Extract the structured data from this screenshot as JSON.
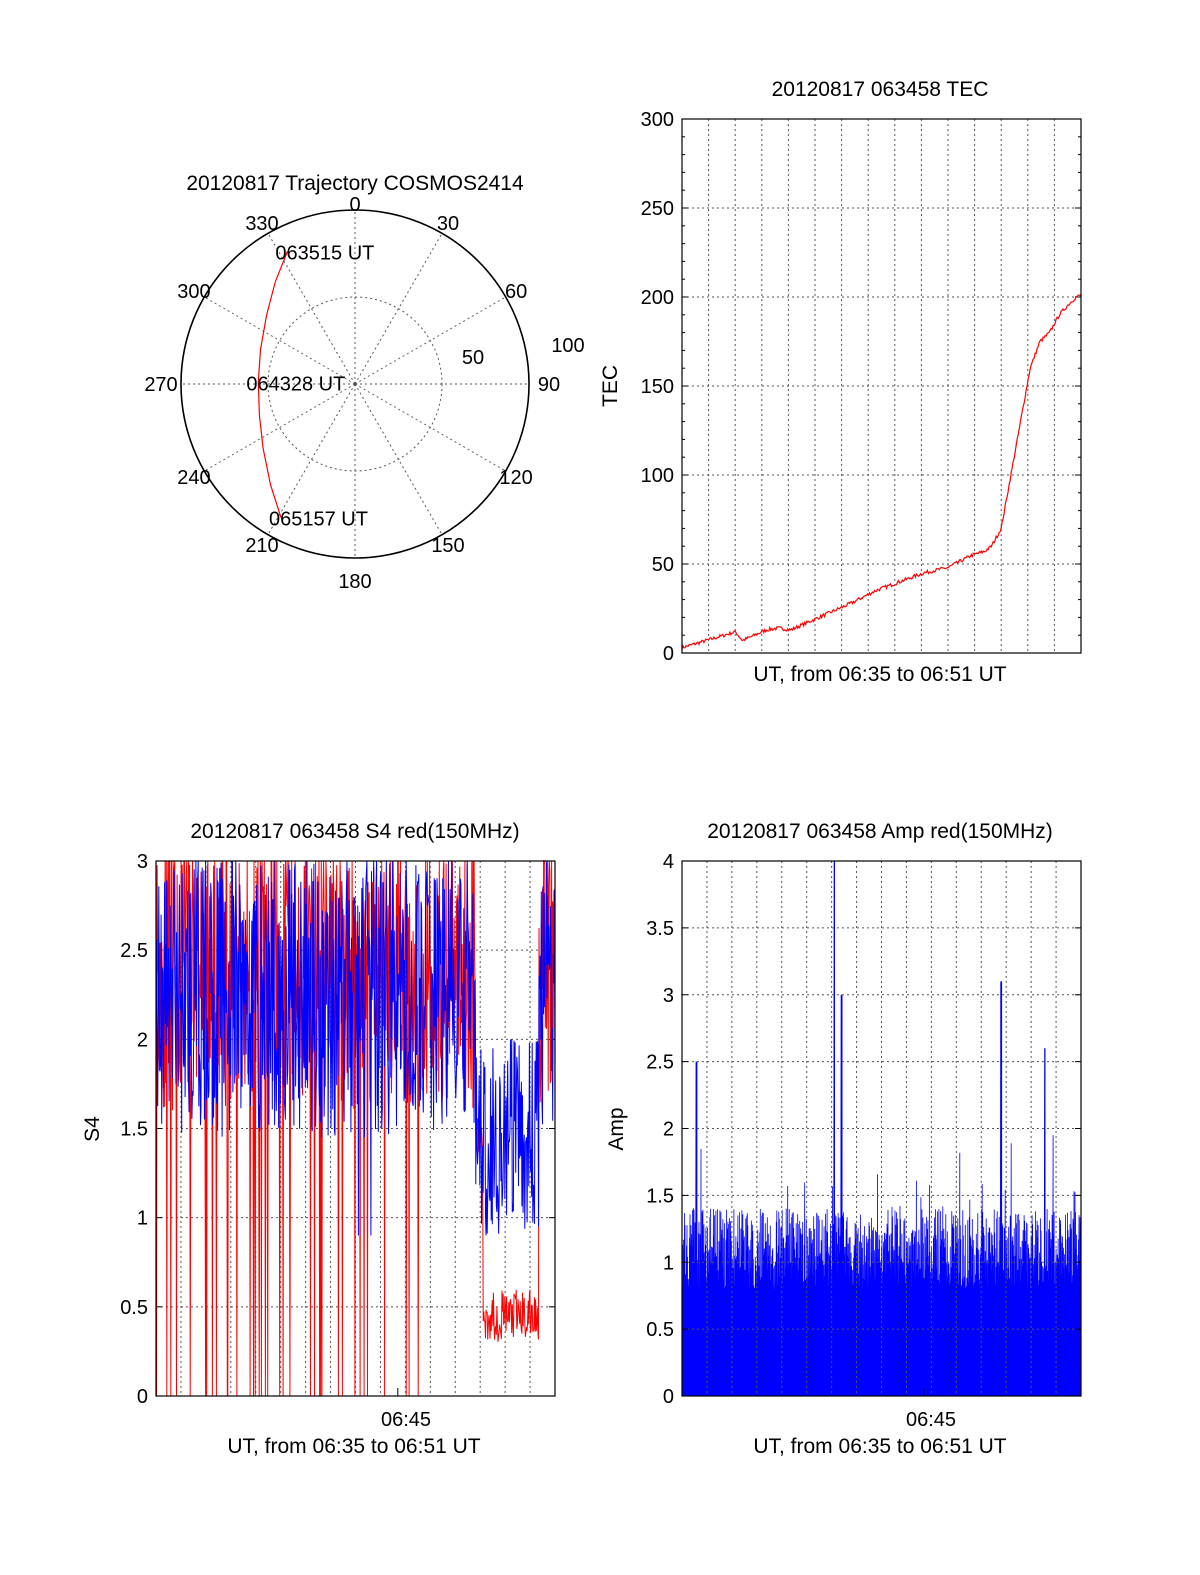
{
  "chart_data": [
    {
      "type": "polar",
      "title": "20120817 Trajectory COSMOS2414",
      "angle_labels": [
        "0",
        "30",
        "60",
        "90",
        "120",
        "150",
        "180",
        "210",
        "240",
        "270",
        "300",
        "330"
      ],
      "radial_labels": [
        "50",
        "100"
      ],
      "radial_range": [
        0,
        100
      ],
      "grid": true,
      "series": [
        {
          "color": "#ff0000",
          "points": [
            {
              "azimuth": 333,
              "elevation": 13
            },
            {
              "azimuth": 322,
              "elevation": 23
            },
            {
              "azimuth": 308,
              "elevation": 32
            },
            {
              "azimuth": 290,
              "elevation": 38
            },
            {
              "azimuth": 271,
              "elevation": 40
            },
            {
              "azimuth": 252,
              "elevation": 38
            },
            {
              "azimuth": 235,
              "elevation": 32
            },
            {
              "azimuth": 220,
              "elevation": 22
            },
            {
              "azimuth": 209,
              "elevation": 11
            }
          ]
        }
      ],
      "annotations": [
        {
          "text": "063515 UT",
          "azimuth": 333,
          "elevation": 13
        },
        {
          "text": "064328 UT",
          "azimuth": 271,
          "elevation": 40
        },
        {
          "text": "065157 UT",
          "azimuth": 209,
          "elevation": 11
        }
      ]
    },
    {
      "type": "line",
      "title": "20120817 063458 TEC",
      "xlabel": "UT, from 06:35 to 06:51 UT",
      "ylabel": "TEC",
      "ylim": [
        0,
        300
      ],
      "yticks": [
        0,
        50,
        100,
        150,
        200,
        250,
        300
      ],
      "xlim_minutes_after_0635": [
        0,
        16.5
      ],
      "grid": true,
      "series": [
        {
          "color": "#ff0000",
          "x": [
            0,
            0.5,
            1.0,
            1.5,
            2.0,
            2.2,
            2.5,
            3.0,
            3.5,
            4.0,
            4.5,
            5.0,
            6.0,
            7.0,
            8.0,
            9.0,
            10.0,
            11.0,
            12.0,
            12.5,
            12.8,
            13.2,
            13.6,
            14.0,
            14.4,
            14.8,
            15.2,
            15.6,
            16.0,
            16.3,
            16.5
          ],
          "values": [
            3,
            5,
            7,
            9,
            11,
            12,
            7,
            10,
            13,
            14,
            13,
            16,
            22,
            28,
            35,
            40,
            45,
            48,
            55,
            57,
            60,
            70,
            100,
            130,
            160,
            175,
            180,
            190,
            196,
            200,
            201
          ]
        }
      ]
    },
    {
      "type": "line",
      "title": "20120817 063458 S4 red(150MHz)",
      "xlabel": "UT, from 06:35 to 06:51 UT",
      "ylabel": "S4",
      "ylim": [
        0,
        3
      ],
      "yticks": [
        0,
        0.5,
        1,
        1.5,
        2,
        2.5,
        3
      ],
      "xtick_labels": [
        "06:45"
      ],
      "grid": true,
      "series": [
        {
          "color": "#ff0000",
          "description_values": {
            "baseline": [
              1.5,
              3
            ],
            "dropouts_to": 0,
            "dip_around_0648": [
              0.3,
              0.5
            ]
          }
        },
        {
          "color": "#0000ff",
          "description_values": {
            "range": [
              1.4,
              3
            ],
            "dip_around_0648": [
              0.8,
              2
            ]
          }
        }
      ]
    },
    {
      "type": "bar",
      "title": "20120817 063458 Amp red(150MHz)",
      "xlabel": "UT, from 06:35 to 06:51 UT",
      "ylabel": "Amp",
      "ylim": [
        0,
        4
      ],
      "yticks": [
        0,
        0.5,
        1,
        1.5,
        2,
        2.5,
        3,
        3.5,
        4
      ],
      "xtick_labels": [
        "06:45"
      ],
      "grid": true,
      "series": [
        {
          "color": "#0000ff",
          "base_level": [
            0.8,
            1.4
          ],
          "peaks": [
            {
              "minute": 0.6,
              "value": 2.5
            },
            {
              "minute": 6.3,
              "value": 4.0
            },
            {
              "minute": 6.6,
              "value": 3.0
            },
            {
              "minute": 13.2,
              "value": 3.1
            },
            {
              "minute": 15.0,
              "value": 2.6
            }
          ]
        }
      ]
    }
  ]
}
